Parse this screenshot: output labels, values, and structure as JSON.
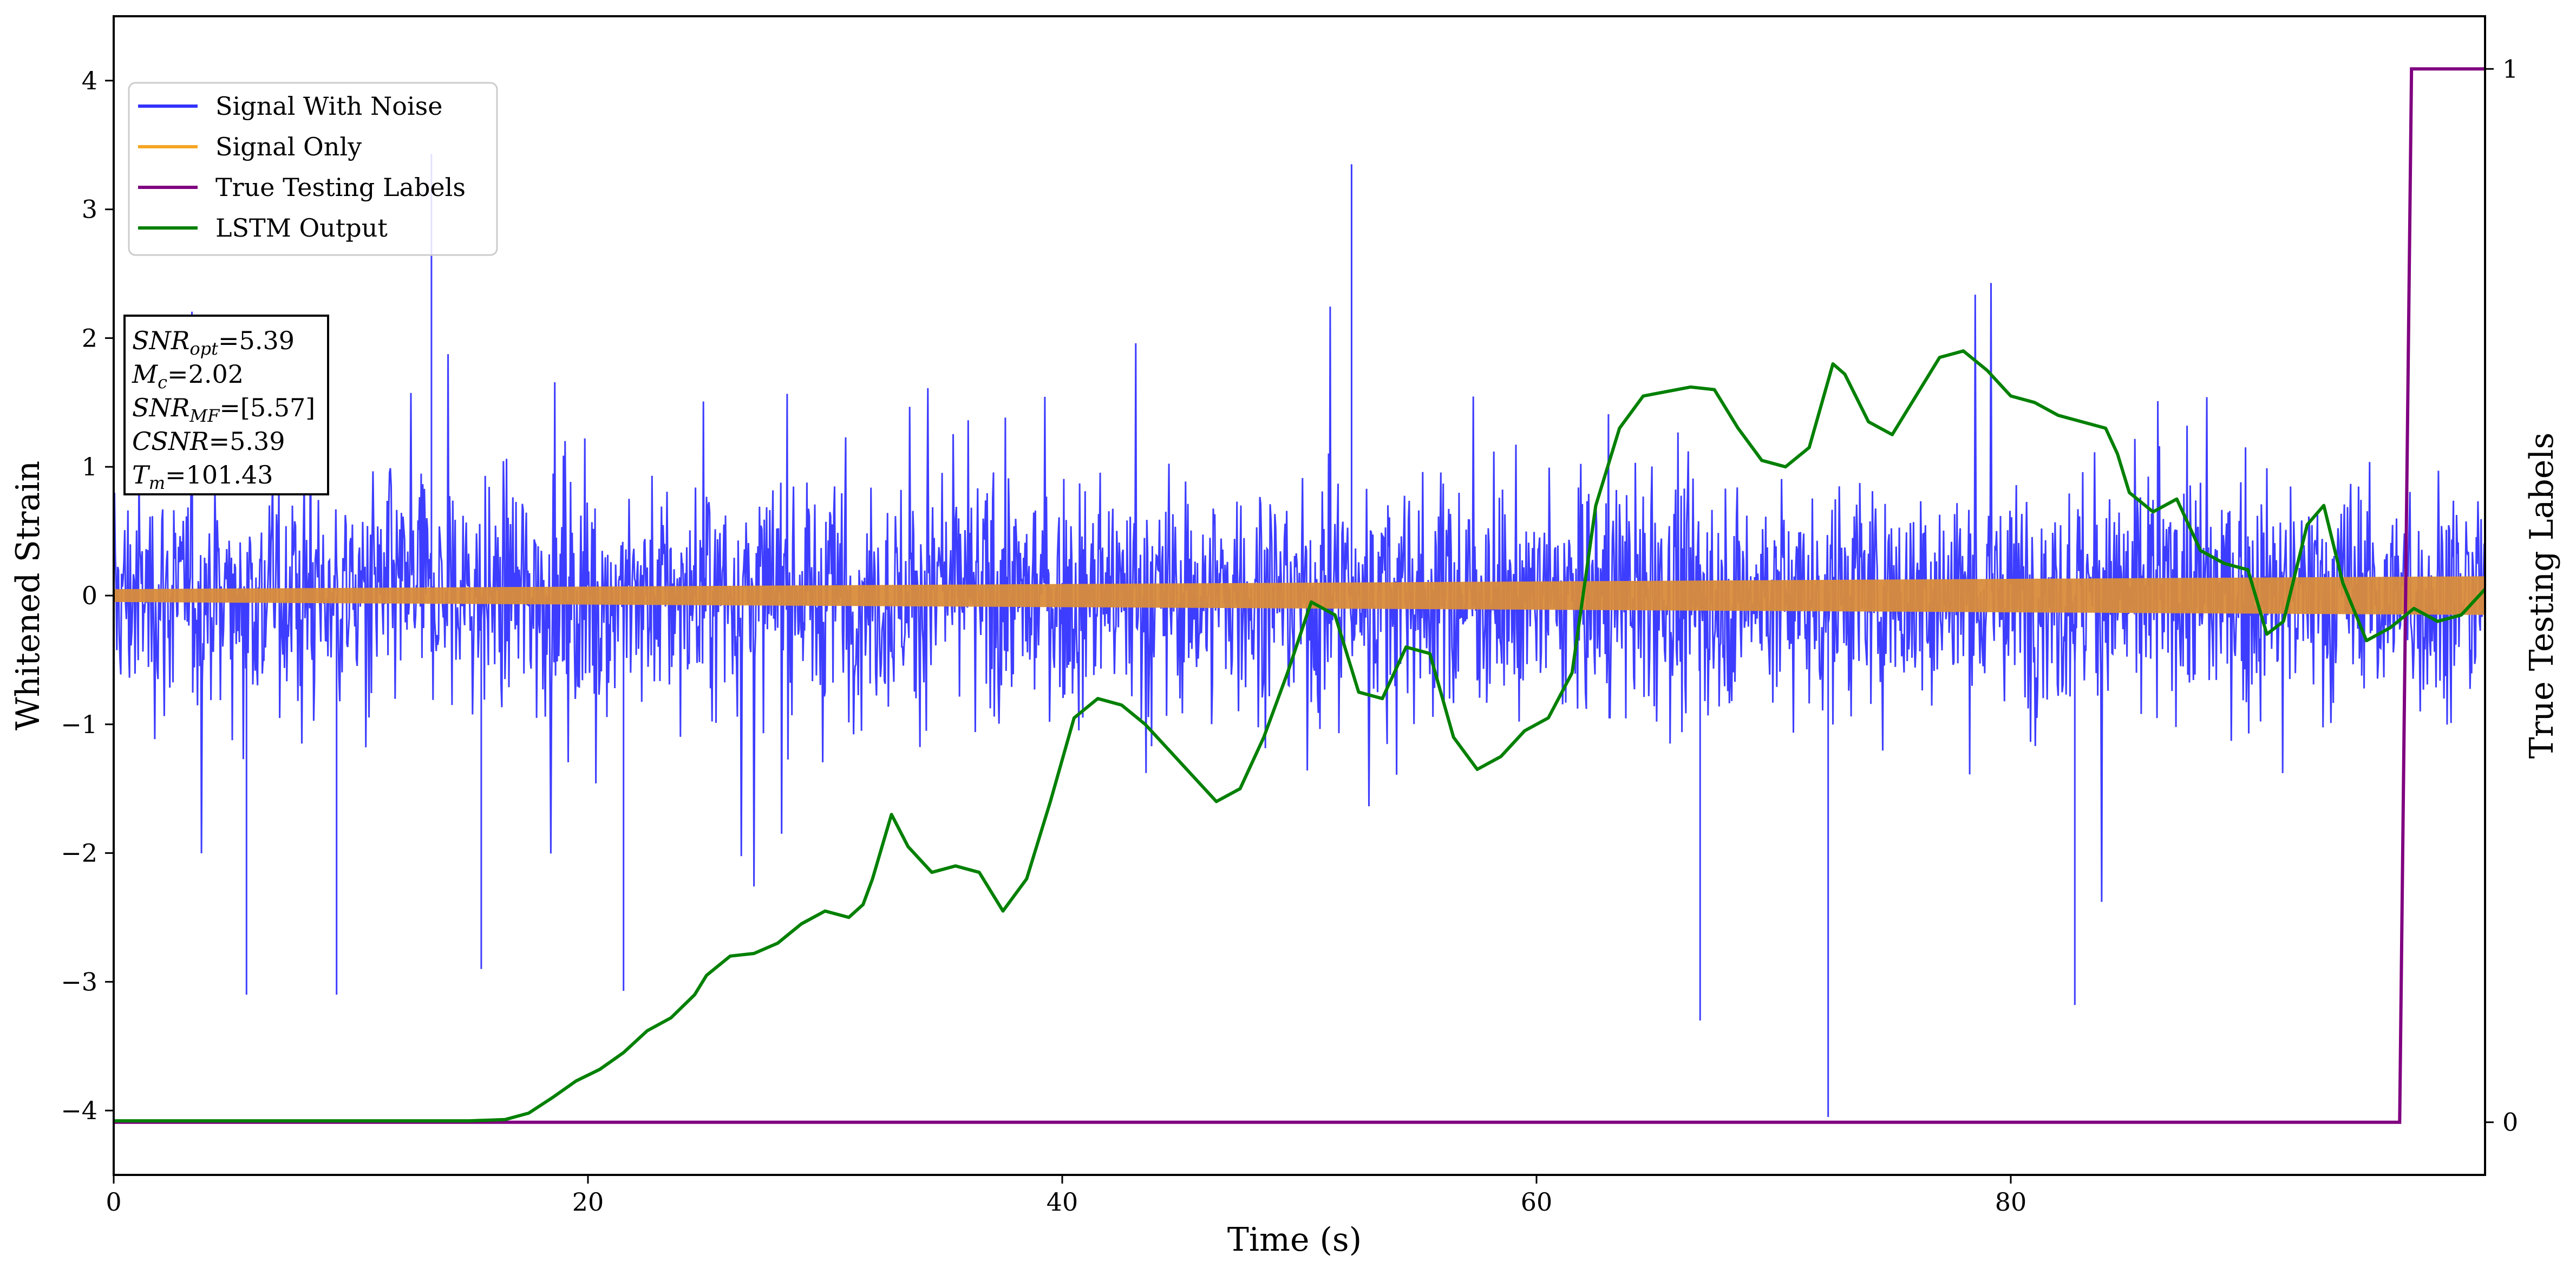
{
  "chart_data": {
    "type": "line",
    "xlabel": "Time (s)",
    "ylabel": "Whitened Strain",
    "y2label": "True Testing Labels",
    "xlim": [
      0,
      100
    ],
    "ylim": [
      -4.5,
      4.5
    ],
    "y2lim": [
      -0.05,
      1.05
    ],
    "xticks": [
      {
        "v": 0,
        "label": "0"
      },
      {
        "v": 20,
        "label": "20"
      },
      {
        "v": 40,
        "label": "40"
      },
      {
        "v": 60,
        "label": "60"
      },
      {
        "v": 80,
        "label": "80"
      }
    ],
    "yticks": [
      {
        "v": 4,
        "label": "4"
      },
      {
        "v": 3,
        "label": "3"
      },
      {
        "v": 2,
        "label": "2"
      },
      {
        "v": 1,
        "label": "1"
      },
      {
        "v": 0,
        "label": "0"
      },
      {
        "v": -1,
        "label": "−1"
      },
      {
        "v": -2,
        "label": "−2"
      },
      {
        "v": -3,
        "label": "−3"
      },
      {
        "v": -4,
        "label": "−4"
      }
    ],
    "y2ticks": [
      {
        "v": 1,
        "label": "1"
      },
      {
        "v": 0,
        "label": "0"
      }
    ],
    "grid": false,
    "legend_position": "upper-left",
    "series": [
      {
        "name": "Signal With Noise",
        "color": "#3333ff",
        "kind": "noise_band",
        "note_values": "dense noisy trace; typical envelope about ±1.2, peaks near 3.4 (t≈13) and trough near -4.05 (t≈72)",
        "peaks": [
          {
            "x": 13.4,
            "y": 3.43
          },
          {
            "x": 52.2,
            "y": 3.35
          },
          {
            "x": 72.3,
            "y": -4.05
          },
          {
            "x": 15.5,
            "y": -2.9
          },
          {
            "x": 5.6,
            "y": -3.1
          },
          {
            "x": 9.4,
            "y": -3.1
          },
          {
            "x": 21.5,
            "y": -3.07
          },
          {
            "x": 82.7,
            "y": -3.18
          },
          {
            "x": 66.9,
            "y": -3.3
          }
        ]
      },
      {
        "name": "Signal Only",
        "color": "#f5a623",
        "kind": "growing_band",
        "amplitude_start": 0.05,
        "amplitude_end": 0.15
      },
      {
        "name": "True Testing Labels",
        "color": "#800080",
        "axis": "y2",
        "x": [
          0,
          96.4,
          96.9,
          100
        ],
        "y": [
          0,
          0,
          1,
          1
        ]
      },
      {
        "name": "LSTM Output",
        "color": "#008000",
        "axis": "y",
        "x": [
          0,
          10,
          15,
          16.5,
          17.5,
          18.5,
          19.5,
          20.5,
          21.5,
          22.5,
          23.5,
          24.5,
          25,
          26,
          27,
          28,
          29,
          30,
          31,
          31.6,
          32,
          32.8,
          33.5,
          34.5,
          35.5,
          36.5,
          37.5,
          38.5,
          39.5,
          40.5,
          41.5,
          42.5,
          43.5,
          44.5,
          45.5,
          46.5,
          47.5,
          48.5,
          49.5,
          50.5,
          51.5,
          52.5,
          53.5,
          54.5,
          55.5,
          56.5,
          57.5,
          58.5,
          59.5,
          60.5,
          61.5,
          62.5,
          63.5,
          64.5,
          66.5,
          67.5,
          68.5,
          69.5,
          70.5,
          71.5,
          72.5,
          73,
          74,
          75,
          76,
          77,
          78,
          79,
          80,
          81,
          82,
          83,
          84,
          84.5,
          85,
          86,
          87,
          88,
          89,
          90,
          90.8,
          91.5,
          92.5,
          93.2,
          94,
          95,
          96,
          97,
          98,
          99,
          100
        ],
        "y": [
          -4.08,
          -4.08,
          -4.08,
          -4.07,
          -4.02,
          -3.9,
          -3.77,
          -3.68,
          -3.55,
          -3.38,
          -3.28,
          -3.1,
          -2.95,
          -2.8,
          -2.78,
          -2.7,
          -2.55,
          -2.45,
          -2.5,
          -2.4,
          -2.2,
          -1.7,
          -1.95,
          -2.15,
          -2.1,
          -2.15,
          -2.45,
          -2.2,
          -1.6,
          -0.95,
          -0.8,
          -0.85,
          -1.0,
          -1.2,
          -1.4,
          -1.6,
          -1.5,
          -1.1,
          -0.6,
          -0.05,
          -0.15,
          -0.75,
          -0.8,
          -0.4,
          -0.45,
          -1.1,
          -1.35,
          -1.25,
          -1.05,
          -0.95,
          -0.6,
          0.7,
          1.3,
          1.55,
          1.62,
          1.6,
          1.3,
          1.05,
          1.0,
          1.15,
          1.8,
          1.72,
          1.35,
          1.25,
          1.55,
          1.85,
          1.9,
          1.75,
          1.55,
          1.5,
          1.4,
          1.35,
          1.3,
          1.1,
          0.8,
          0.65,
          0.75,
          0.35,
          0.25,
          0.2,
          -0.3,
          -0.2,
          0.55,
          0.7,
          0.1,
          -0.35,
          -0.25,
          -0.1,
          -0.2,
          -0.15,
          0.05
        ]
      }
    ]
  },
  "stats_box": {
    "line1": {
      "var": "SNR",
      "sub": "opt",
      "value": "=5.39"
    },
    "line2": {
      "var": "M",
      "sub": "c",
      "value": "=2.02"
    },
    "line3": {
      "var": "SNR",
      "sub": "MF",
      "value": "=[5.57]"
    },
    "line4": {
      "var": "CSNR",
      "sub": "",
      "value": "=5.39"
    },
    "line5": {
      "var": "T",
      "sub": "m",
      "value": "=101.43"
    }
  },
  "colors": {
    "noise": "#3333ff",
    "signal": "#f5a623",
    "labels": "#800080",
    "lstm": "#008000"
  }
}
